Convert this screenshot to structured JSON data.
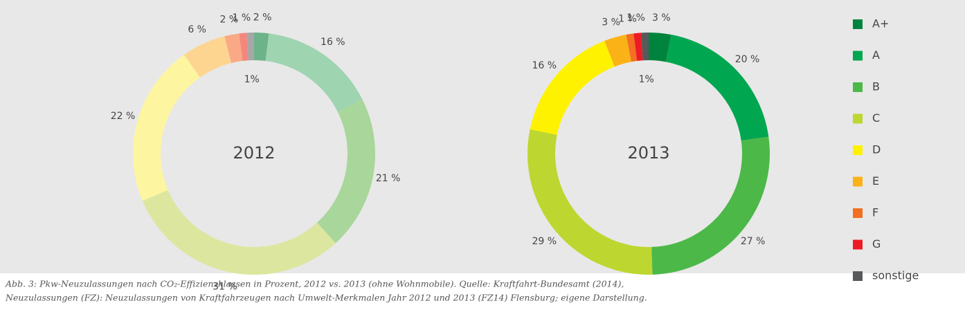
{
  "chart_data": [
    {
      "type": "pie",
      "title": "2012",
      "categories": [
        "A+",
        "A",
        "B",
        "C",
        "D",
        "E",
        "F",
        "G",
        "sonstige"
      ],
      "values": [
        2,
        16,
        21,
        31,
        22,
        6,
        2,
        1,
        1
      ],
      "value_labels": [
        "2 %",
        "16 %",
        "21 %",
        "31 %",
        "22 %",
        "6 %",
        "2 %",
        "1 %",
        "1%"
      ],
      "colors": [
        "#6db38a",
        "#9fd4b0",
        "#a9d69a",
        "#dde69e",
        "#fef5a0",
        "#fdd591",
        "#f9a985",
        "#f4877d",
        "#a7a7a8"
      ]
    },
    {
      "type": "pie",
      "title": "2013",
      "categories": [
        "A+",
        "A",
        "B",
        "C",
        "D",
        "E",
        "F",
        "G",
        "sonstige"
      ],
      "values": [
        3,
        20,
        27,
        29,
        16,
        3,
        1,
        1,
        1
      ],
      "value_labels": [
        "3 %",
        "20 %",
        "27 %",
        "29 %",
        "16 %",
        "3 %",
        "1 %",
        "1 %",
        "1%"
      ],
      "colors": [
        "#00843d",
        "#00a650",
        "#4cb848",
        "#bed630",
        "#fff200",
        "#fbb216",
        "#f36f21",
        "#ed1c24",
        "#58595b"
      ]
    }
  ],
  "caption": [
    "Abb. 3: Pkw-Neuzulassungen nach CO₂-Effizienzklassen in Prozent, 2012 vs. 2013 (ohne Wohnmobile). Quelle: Kraftfahrt-Bundesamt (2014),",
    "Neuzulassungen (FZ): Neuzulassungen von Kraftfahrzeugen nach Umwelt-Merkmalen Jahr 2012 und 2013 (FZ14) Flensburg; eigene Darstellung."
  ]
}
